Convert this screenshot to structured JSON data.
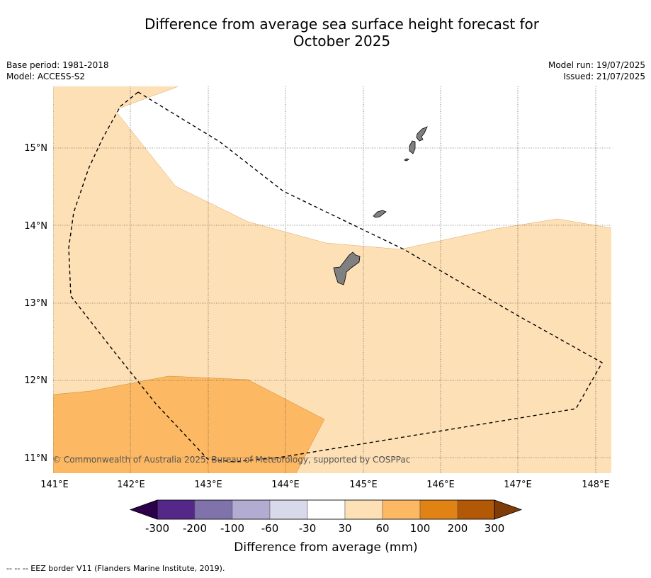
{
  "title_line1": "Difference from average sea surface height forecast for",
  "title_line2": "October 2025",
  "base_period": "Base period: 1981-2018",
  "model": "Model: ACCESS-S2",
  "model_run": "Model run: 19/07/2025",
  "issued": "Issued: 21/07/2025",
  "copyright": "© Commonwealth of Australia 2025, Bureau of Meteorology, supported by COSPPac",
  "footer": "--  --  -- EEZ border V11 (Flanders Marine Institute, 2019).",
  "map": {
    "lon_ticks": [
      "141°E",
      "142°E",
      "143°E",
      "144°E",
      "145°E",
      "146°E",
      "147°E",
      "148°E"
    ],
    "lat_ticks": [
      "15°N",
      "14°N",
      "13°N",
      "12°N",
      "11°N"
    ],
    "lon_range": [
      141,
      148.2
    ],
    "lat_range": [
      10.8,
      15.8
    ],
    "land_color": "#808080",
    "eez_style": "dashed"
  },
  "colorbar": {
    "title": "Difference from average (mm)",
    "labels": [
      "-300",
      "-200",
      "-100",
      "-60",
      "-30",
      "30",
      "60",
      "100",
      "200",
      "300"
    ],
    "colors": [
      "#2d004b",
      "#542788",
      "#8073ac",
      "#b2abd2",
      "#d8daeb",
      "#ffffff",
      "#fee0b6",
      "#fdb863",
      "#e08214",
      "#b35806",
      "#7f3b08"
    ]
  }
}
